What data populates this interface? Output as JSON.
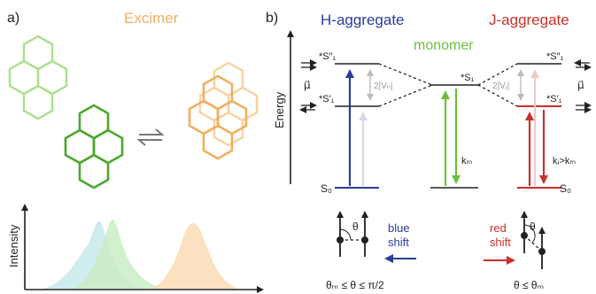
{
  "panel_a": {
    "label": "a)",
    "excimer_title": "Excimer",
    "intensity_label": "Intensity"
  },
  "panel_b": {
    "label": "b)",
    "energy_label": "Energy",
    "h_aggregate_title": "H-aggregate",
    "j_aggregate_title": "J-aggregate",
    "monomer_title": "monomer",
    "levels": {
      "h_upper": "*S″₁",
      "h_lower": "*S′₁",
      "h_ground": "S₀",
      "monomer_excited": "*S₁",
      "j_upper": "*S″₁",
      "j_lower": "*S′₁",
      "j_ground": "S₀"
    },
    "mu_left": "μ⃗",
    "mu_right": "μ⃗",
    "coupling_h": "2|Vₕ|",
    "coupling_j": "2|Vⱼ|",
    "rate_monomer": "kₘ",
    "rate_j": "kⱼ>kₘ",
    "theta": "θ",
    "blue_shift": [
      "blue",
      "shift"
    ],
    "red_shift": [
      "red",
      "shift"
    ],
    "condition_h": "θₘ ≤ θ ≤ π/2",
    "condition_j": "θ ≤ θₘ"
  },
  "colors": {
    "h_blue": "#2b3b97",
    "j_red": "#c8302a",
    "monomer_green": "#6abf3c",
    "excimer_orange": "#f0b060",
    "pyrene_light": "#a8e08c",
    "pyrene_dark": "#4ca72e",
    "spectrum_cyan": "#bfe6ea",
    "spectrum_green": "#c8ecc2",
    "spectrum_orange": "#fad9b0"
  }
}
